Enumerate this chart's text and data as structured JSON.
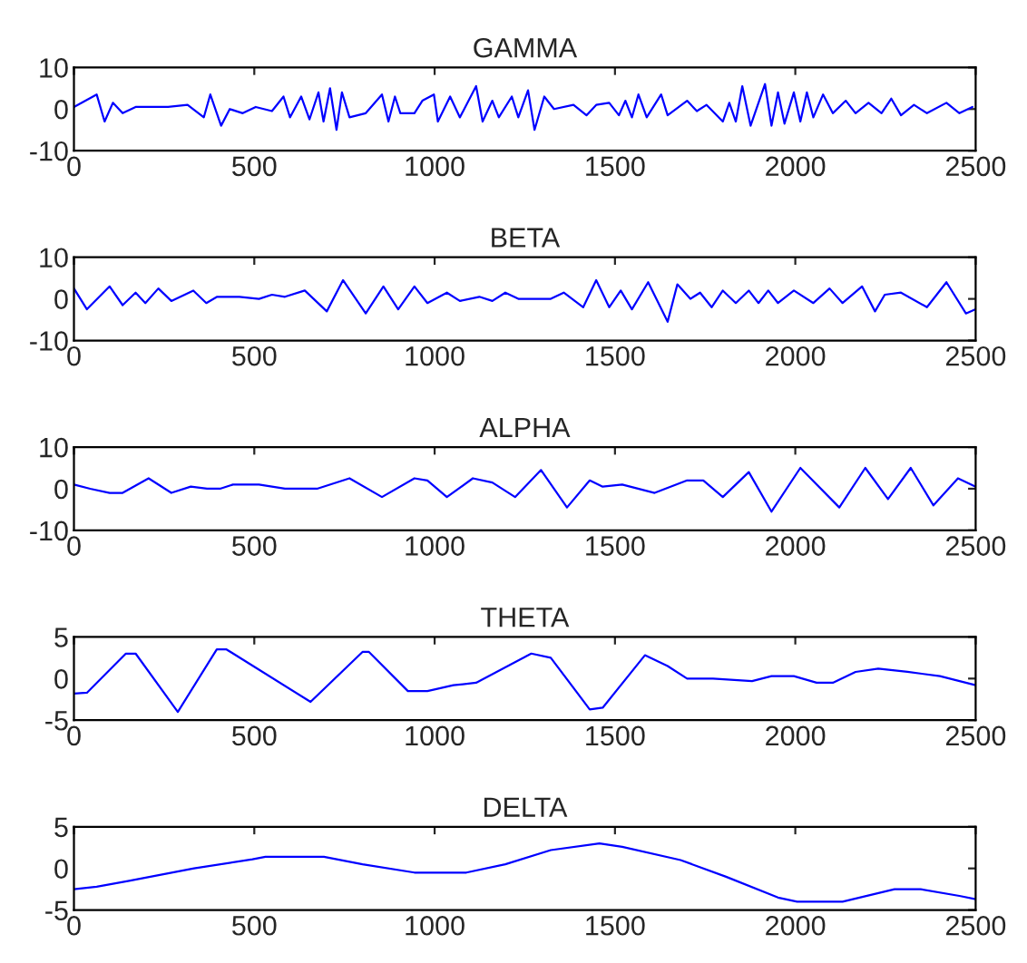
{
  "chart_data": [
    {
      "type": "line",
      "title": "GAMMA",
      "xlim": [
        0,
        2500
      ],
      "xticks": [
        0,
        500,
        1000,
        1500,
        2000,
        2500
      ],
      "ylim": [
        -10,
        10
      ],
      "yticks": [
        -10,
        0,
        10
      ],
      "grid": false,
      "legend": false,
      "series": [
        {
          "color": "#0000ff",
          "x": [
            0,
            63,
            85,
            108,
            135,
            171,
            261,
            315,
            360,
            378,
            408,
            432,
            468,
            504,
            549,
            581,
            599,
            630,
            653,
            678,
            692,
            710,
            728,
            743,
            764,
            809,
            854,
            872,
            890,
            905,
            944,
            966,
            998,
            1009,
            1043,
            1070,
            1115,
            1133,
            1160,
            1178,
            1214,
            1232,
            1259,
            1277,
            1304,
            1331,
            1385,
            1421,
            1448,
            1484,
            1511,
            1529,
            1547,
            1565,
            1588,
            1628,
            1646,
            1700,
            1727,
            1754,
            1799,
            1817,
            1835,
            1853,
            1876,
            1916,
            1934,
            1952,
            1970,
            1996,
            2014,
            2032,
            2050,
            2077,
            2104,
            2140,
            2167,
            2203,
            2239,
            2266,
            2293,
            2329,
            2365,
            2419,
            2455,
            2491
          ],
          "values": [
            0.5,
            3.5,
            -3,
            1.5,
            -1,
            0.5,
            0.5,
            1,
            -2,
            3.5,
            -4,
            0,
            -1,
            0.5,
            -0.5,
            3,
            -2,
            3,
            -2.5,
            4,
            -3,
            5,
            -5,
            4,
            -2,
            -1,
            3.5,
            -3,
            3,
            -1,
            -1,
            2,
            3.5,
            -3,
            3,
            -2,
            5.5,
            -3,
            2,
            -2,
            3,
            -2,
            4.5,
            -5,
            3,
            0,
            1,
            -1.5,
            1,
            1.5,
            -1.5,
            2,
            -2,
            3.5,
            -2,
            3.5,
            -1.5,
            2,
            -0.5,
            1,
            -3,
            1.5,
            -3,
            5.5,
            -4,
            6,
            -4,
            4,
            -3.5,
            4,
            -3,
            4,
            -2,
            3.5,
            -1,
            2,
            -1,
            1.5,
            -1,
            2.5,
            -1.5,
            1,
            -1,
            1.5,
            -1,
            0.5
          ]
        }
      ]
    },
    {
      "type": "line",
      "title": "BETA",
      "xlim": [
        0,
        2500
      ],
      "xticks": [
        0,
        500,
        1000,
        1500,
        2000,
        2500
      ],
      "ylim": [
        -10,
        10
      ],
      "yticks": [
        -10,
        0,
        10
      ],
      "grid": false,
      "legend": false,
      "series": [
        {
          "color": "#0000ff",
          "x": [
            0,
            36,
            99,
            135,
            171,
            198,
            234,
            270,
            331,
            367,
            397,
            459,
            513,
            549,
            585,
            640,
            701,
            746,
            809,
            858,
            899,
            944,
            980,
            1034,
            1070,
            1124,
            1160,
            1196,
            1232,
            1322,
            1358,
            1412,
            1448,
            1484,
            1516,
            1547,
            1592,
            1646,
            1673,
            1709,
            1736,
            1768,
            1799,
            1835,
            1871,
            1898,
            1925,
            1952,
            1996,
            2050,
            2095,
            2131,
            2185,
            2221,
            2248,
            2293,
            2365,
            2419,
            2473,
            2500
          ],
          "values": [
            2.5,
            -2.5,
            3,
            -1.5,
            1.5,
            -1,
            2.5,
            -0.5,
            2,
            -1,
            0.5,
            0.5,
            0,
            1,
            0.5,
            2,
            -3,
            4.5,
            -3.5,
            3,
            -2.5,
            3,
            -1,
            1.5,
            -0.5,
            0.5,
            -0.5,
            1.5,
            0,
            0,
            1.5,
            -2,
            4.5,
            -2,
            2,
            -2.5,
            4,
            -5.5,
            3.5,
            0,
            1.5,
            -2,
            2,
            -1,
            2,
            -1,
            2,
            -1,
            2,
            -1,
            2.5,
            -1,
            3,
            -3,
            1,
            1.5,
            -2,
            4,
            -3.5,
            -2.5
          ]
        }
      ]
    },
    {
      "type": "line",
      "title": "ALPHA",
      "xlim": [
        0,
        2500
      ],
      "xticks": [
        0,
        500,
        1000,
        1500,
        2000,
        2500
      ],
      "ylim": [
        -10,
        10
      ],
      "yticks": [
        -10,
        0,
        10
      ],
      "grid": false,
      "legend": false,
      "series": [
        {
          "color": "#0000ff",
          "x": [
            0,
            45,
            99,
            135,
            207,
            270,
            324,
            369,
            405,
            441,
            513,
            585,
            674,
            764,
            854,
            944,
            980,
            1034,
            1106,
            1160,
            1223,
            1295,
            1367,
            1430,
            1466,
            1520,
            1610,
            1700,
            1745,
            1799,
            1871,
            1934,
            2014,
            2122,
            2194,
            2257,
            2320,
            2383,
            2451,
            2500
          ],
          "values": [
            1,
            0,
            -1,
            -1,
            2.5,
            -1,
            0.5,
            0,
            0,
            1,
            1,
            0,
            0,
            2.5,
            -2,
            2.5,
            2,
            -2,
            2.5,
            1.5,
            -2,
            4.5,
            -4.5,
            2,
            0.5,
            1,
            -1,
            2,
            2,
            -2,
            4,
            -5.5,
            5,
            -4.5,
            5,
            -2.5,
            5,
            -4,
            2.5,
            0.5
          ]
        }
      ]
    },
    {
      "type": "line",
      "title": "THETA",
      "xlim": [
        0,
        2500
      ],
      "xticks": [
        0,
        500,
        1000,
        1500,
        2000,
        2500
      ],
      "ylim": [
        -5,
        5
      ],
      "yticks": [
        -5,
        0,
        5
      ],
      "grid": false,
      "legend": false,
      "series": [
        {
          "color": "#0000ff",
          "x": [
            0,
            36,
            144,
            171,
            288,
            396,
            423,
            656,
            800,
            818,
            926,
            980,
            1052,
            1115,
            1268,
            1322,
            1430,
            1466,
            1583,
            1646,
            1700,
            1772,
            1880,
            1934,
            1996,
            2059,
            2104,
            2167,
            2230,
            2311,
            2401,
            2500
          ],
          "values": [
            -1.8,
            -1.7,
            3,
            3,
            -4,
            3.5,
            3.5,
            -2.8,
            3.2,
            3.2,
            -1.5,
            -1.5,
            -0.8,
            -0.5,
            3,
            2.5,
            -3.7,
            -3.5,
            2.8,
            1.5,
            0,
            0,
            -0.3,
            0.3,
            0.3,
            -0.5,
            -0.5,
            0.8,
            1.2,
            0.8,
            0.3,
            -0.8
          ]
        }
      ]
    },
    {
      "type": "line",
      "title": "DELTA",
      "xlim": [
        0,
        2500
      ],
      "xticks": [
        0,
        500,
        1000,
        1500,
        2000,
        2500
      ],
      "ylim": [
        -5,
        5
      ],
      "yticks": [
        -5,
        0,
        5
      ],
      "grid": false,
      "legend": false,
      "series": [
        {
          "color": "#0000ff",
          "x": [
            0,
            63,
            153,
            333,
            495,
            531,
            693,
            800,
            944,
            1088,
            1196,
            1322,
            1457,
            1520,
            1682,
            1808,
            1952,
            2005,
            2131,
            2275,
            2347,
            2455,
            2500
          ],
          "values": [
            -2.5,
            -2.2,
            -1.5,
            0,
            1.1,
            1.4,
            1.4,
            0.5,
            -0.5,
            -0.5,
            0.5,
            2.2,
            3,
            2.6,
            1,
            -1,
            -3.5,
            -4,
            -4,
            -2.5,
            -2.5,
            -3.3,
            -3.7
          ]
        }
      ]
    }
  ]
}
